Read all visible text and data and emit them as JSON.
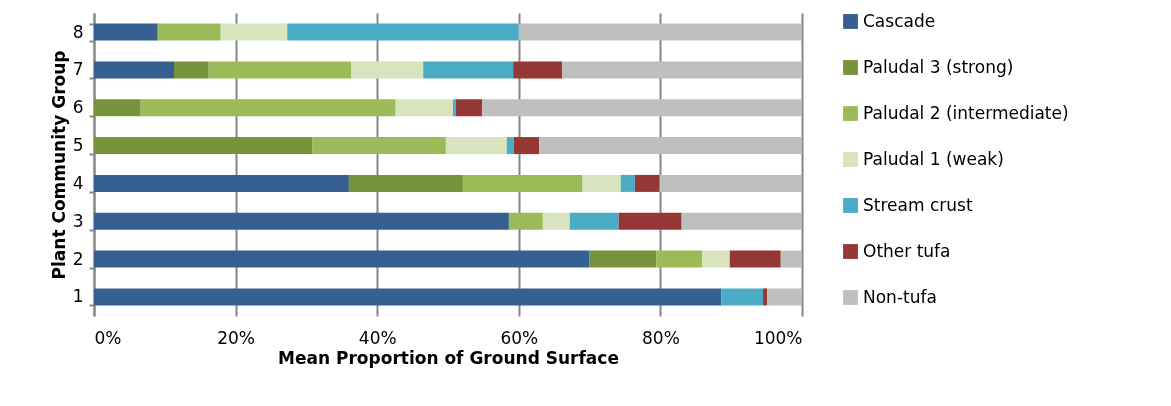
{
  "chart_data": {
    "type": "bar",
    "orientation": "horizontal",
    "stacked": true,
    "xlabel": "Mean Proportion of Ground Surface",
    "ylabel": "Plant Community Group",
    "categories": [
      "8",
      "7",
      "6",
      "5",
      "4",
      "3",
      "2",
      "1"
    ],
    "series": [
      {
        "name": "Cascade",
        "color": "#366092",
        "values": [
          9.0,
          11.3,
          0,
          0,
          36.0,
          58.6,
          70.0,
          88.6
        ]
      },
      {
        "name": "Paludal 3 (strong)",
        "color": "#77933c",
        "values": [
          0,
          4.9,
          6.5,
          30.8,
          16.1,
          0,
          9.4,
          0
        ]
      },
      {
        "name": "Paludal 2 (intermediate)",
        "color": "#9bbb59",
        "values": [
          8.9,
          20.1,
          36.1,
          18.9,
          16.9,
          4.8,
          6.5,
          0
        ]
      },
      {
        "name": "Paludal 1 (weak)",
        "color": "#d7e4bd",
        "values": [
          9.4,
          10.2,
          8.1,
          8.6,
          5.4,
          3.8,
          3.9,
          0
        ]
      },
      {
        "name": "Stream crust",
        "color": "#4bacc6",
        "values": [
          32.7,
          12.7,
          0.4,
          1.0,
          2.0,
          6.9,
          0,
          5.9
        ]
      },
      {
        "name": "Other tufa",
        "color": "#953735",
        "values": [
          0,
          6.9,
          3.7,
          3.6,
          3.5,
          8.9,
          7.2,
          0.6
        ]
      },
      {
        "name": "Non-tufa",
        "color": "#bfbfbf",
        "values": [
          40.0,
          33.9,
          45.2,
          37.1,
          20.1,
          17.0,
          3.0,
          4.9
        ]
      }
    ],
    "xlim": [
      0,
      100
    ],
    "xticks": [
      {
        "value": 0,
        "label": "0%"
      },
      {
        "value": 20,
        "label": "20%"
      },
      {
        "value": 40,
        "label": "40%"
      },
      {
        "value": 60,
        "label": "60%"
      },
      {
        "value": 80,
        "label": "80%"
      },
      {
        "value": 100,
        "label": "100%"
      }
    ],
    "grid": "x",
    "legend": "right"
  }
}
